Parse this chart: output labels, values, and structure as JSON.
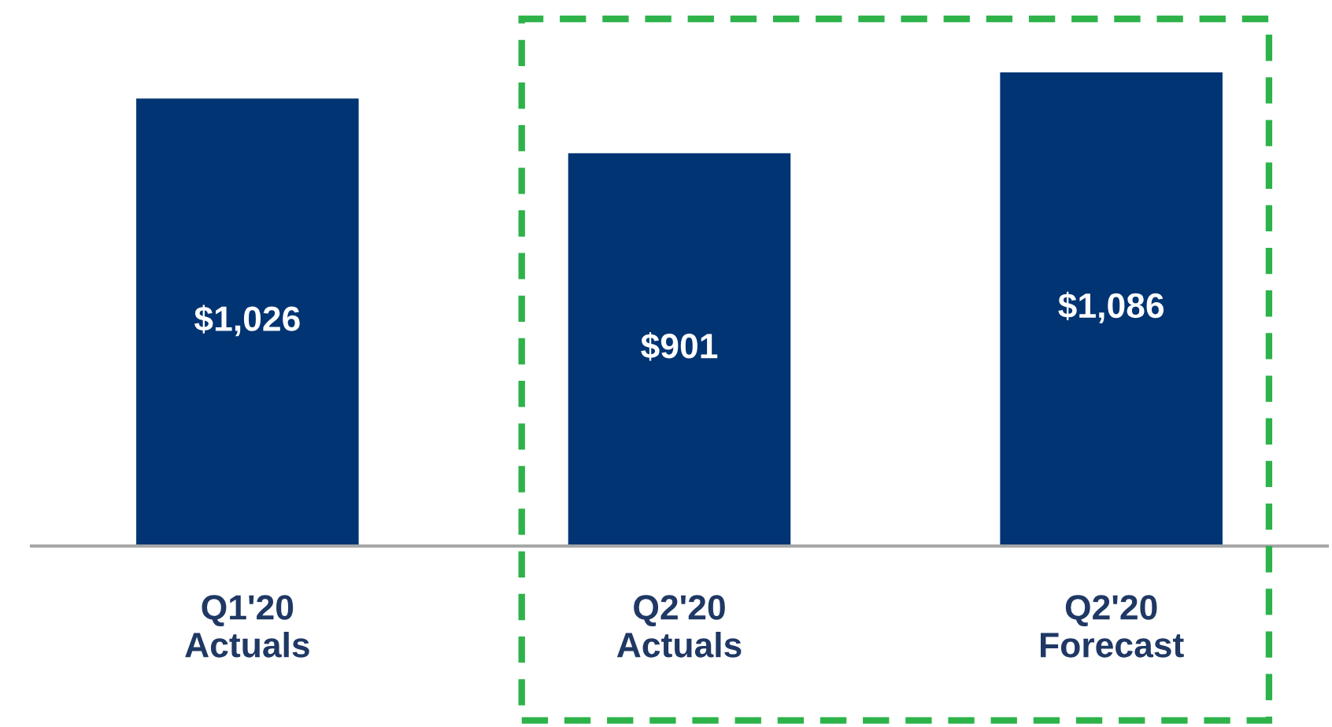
{
  "chart_data": {
    "type": "bar",
    "categories": [
      "Q1'20\nActuals",
      "Q2'20\nActuals",
      "Q2'20\nForecast"
    ],
    "values": [
      1026,
      901,
      1086
    ],
    "color": "#003473",
    "value_labels": [
      "$1,026",
      "$901",
      "$1,086"
    ],
    "grid": false,
    "legend": false
  }
}
